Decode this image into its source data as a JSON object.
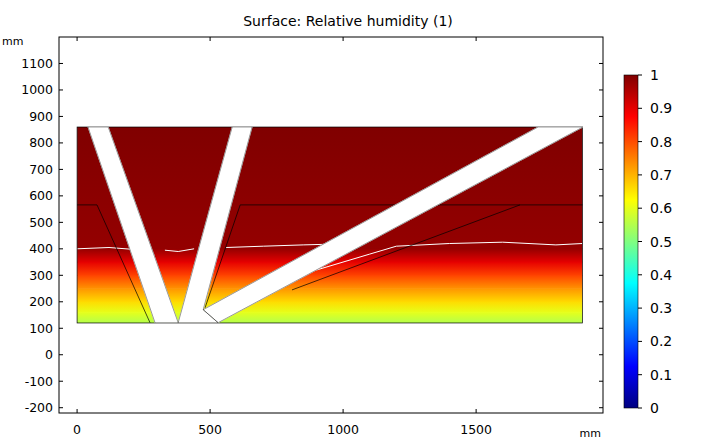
{
  "chart_data": {
    "type": "surface",
    "title": "Surface: Relative humidity (1)",
    "xlabel": "mm",
    "ylabel": "mm",
    "xlim": [
      -68,
      1977
    ],
    "ylim": [
      -220,
      1200
    ],
    "xticks": [
      0,
      500,
      1000,
      1500
    ],
    "yticks": [
      -200,
      -100,
      0,
      100,
      200,
      300,
      400,
      500,
      600,
      700,
      800,
      900,
      1000,
      1100
    ],
    "domain": {
      "x": [
        0,
        1900
      ],
      "y": [
        120,
        860
      ]
    },
    "profile": {
      "y": [
        120,
        160,
        200,
        250,
        300,
        350,
        400,
        860
      ],
      "values": [
        0.55,
        0.6,
        0.66,
        0.73,
        0.81,
        0.9,
        0.98,
        1
      ]
    },
    "pipes": [
      [
        [
          41,
          860
        ],
        [
          117,
          860
        ],
        [
          380,
          121
        ],
        [
          293,
          121
        ]
      ],
      [
        [
          583,
          860
        ],
        [
          658,
          860
        ],
        [
          474,
          170
        ],
        [
          530,
          121
        ],
        [
          380,
          121
        ]
      ],
      [
        [
          474,
          170
        ],
        [
          1733,
          860
        ],
        [
          1902,
          860
        ],
        [
          530,
          121
        ]
      ]
    ],
    "boundaries": [
      [
        [
          0,
          566
        ],
        [
          75,
          566
        ],
        [
          274,
          121
        ]
      ],
      [
        [
          481,
          177
        ],
        [
          613,
          566
        ],
        [
          1665,
          566
        ],
        [
          808,
          245
        ]
      ],
      [
        [
          1665,
          566
        ],
        [
          1900,
          566
        ]
      ]
    ],
    "contour": [
      [
        [
          0,
          400
        ],
        [
          120,
          405
        ],
        [
          250,
          395
        ],
        [
          290,
          380
        ]
      ],
      [
        [
          330,
          395
        ],
        [
          380,
          390
        ],
        [
          440,
          400
        ]
      ],
      [
        [
          560,
          405
        ],
        [
          700,
          410
        ],
        [
          850,
          415
        ],
        [
          1050,
          420
        ]
      ],
      [
        [
          900,
          320
        ],
        [
          1100,
          380
        ],
        [
          1200,
          410
        ],
        [
          1400,
          420
        ],
        [
          1600,
          425
        ],
        [
          1800,
          415
        ],
        [
          1900,
          420
        ]
      ]
    ],
    "colorbar": {
      "range": [
        0,
        1
      ],
      "ticks": [
        0,
        0.1,
        0.2,
        0.3,
        0.4,
        0.5,
        0.6,
        0.7,
        0.8,
        0.9,
        1
      ],
      "colors": [
        "#000080",
        "#0000ff",
        "#0080ff",
        "#00ffff",
        "#80ff80",
        "#ffff00",
        "#ff8000",
        "#ff0000",
        "#800000"
      ]
    }
  }
}
